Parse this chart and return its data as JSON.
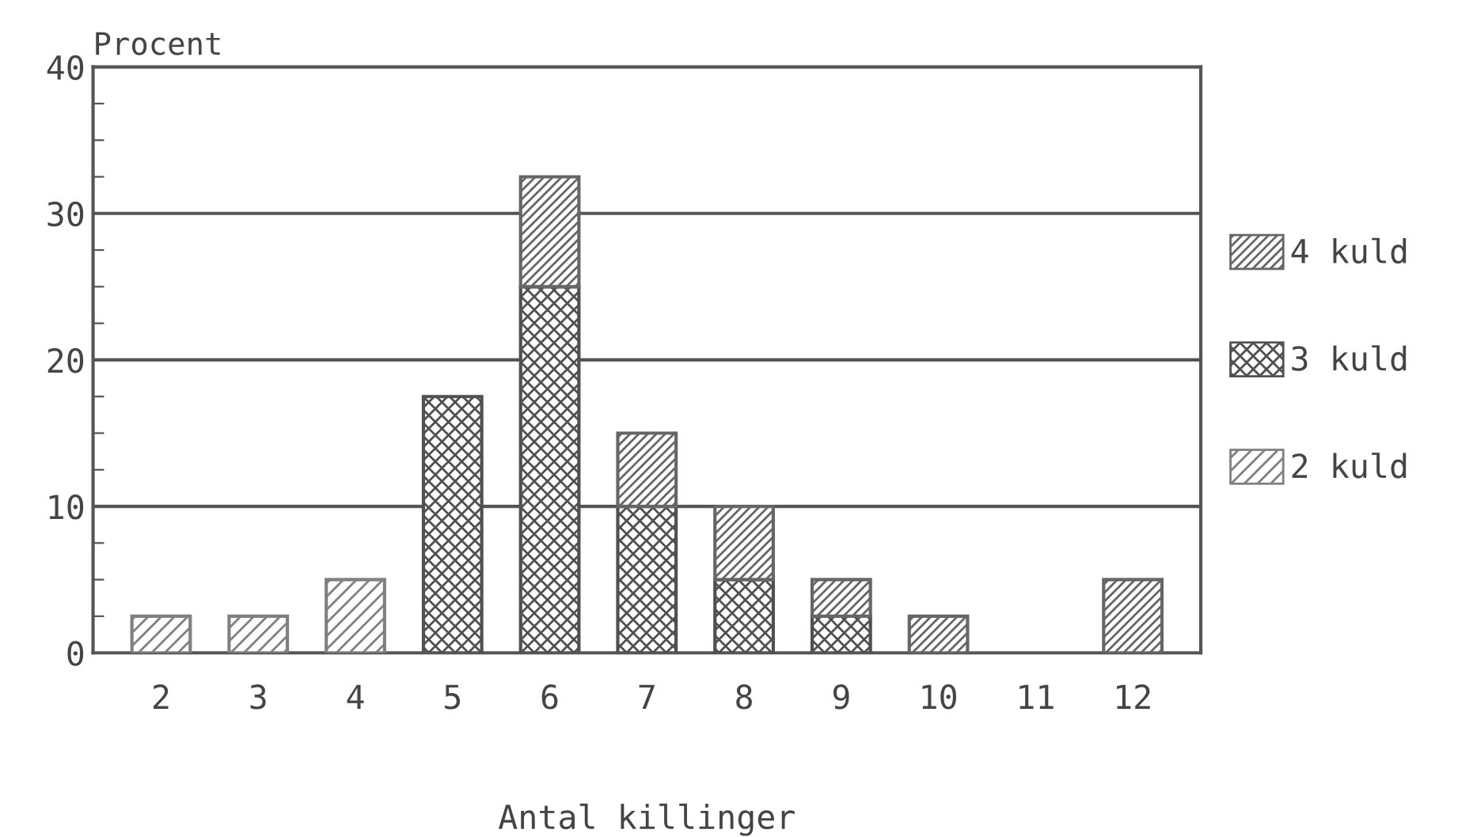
{
  "chart_data": {
    "type": "bar",
    "stacked": true,
    "ylabel": "Procent",
    "xlabel": "Antal killinger",
    "categories": [
      "2",
      "3",
      "4",
      "5",
      "6",
      "7",
      "8",
      "9",
      "10",
      "11",
      "12"
    ],
    "series": [
      {
        "name": "2 kuld",
        "color": "#808080",
        "values": [
          2.5,
          2.5,
          5,
          0,
          0,
          0,
          0,
          0,
          0,
          0,
          0
        ]
      },
      {
        "name": "3 kuld",
        "color": "#505050",
        "values": [
          0,
          0,
          0,
          17.5,
          25,
          10,
          5,
          2.5,
          0,
          0,
          0
        ]
      },
      {
        "name": "4 kuld",
        "color": "#666666",
        "values": [
          0,
          0,
          0,
          0,
          7.5,
          5,
          5,
          2.5,
          2.5,
          0,
          5
        ]
      }
    ],
    "ylim": [
      0,
      40
    ],
    "yticks": [
      0,
      {
        "value": 2.5,
        "label": null
      },
      {
        "value": 5,
        "label": null
      },
      {
        "value": 7.5,
        "label": null
      },
      10,
      {
        "value": 12.5,
        "label": null
      },
      {
        "value": 15,
        "label": null
      },
      {
        "value": 17.5,
        "label": null
      },
      20,
      {
        "value": 22.5,
        "label": null
      },
      {
        "value": 25,
        "label": null
      },
      {
        "value": 27.5,
        "label": null
      },
      30,
      {
        "value": 32.5,
        "label": null
      },
      {
        "value": 35,
        "label": null
      },
      {
        "value": 37.5,
        "label": null
      },
      40
    ],
    "grid": "y",
    "legend": "right"
  }
}
